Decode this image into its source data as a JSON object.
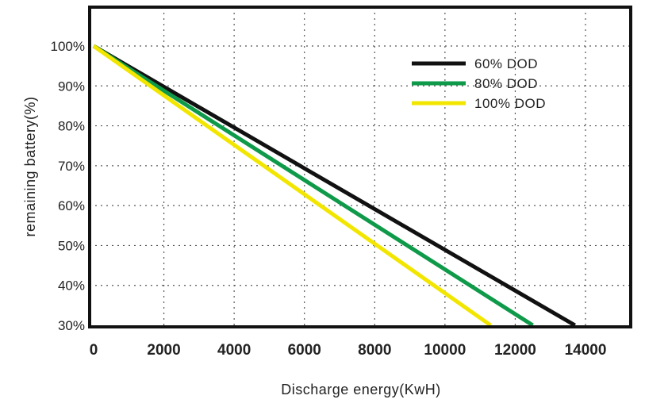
{
  "chart_data": {
    "type": "line",
    "xlabel": "Discharge energy(KwH)",
    "ylabel": "remaining battery(%)",
    "xlim": [
      0,
      14000
    ],
    "ylim": [
      30,
      100
    ],
    "x_ticks": [
      "0",
      "2000",
      "4000",
      "6000",
      "8000",
      "10000",
      "12000",
      "14000"
    ],
    "y_ticks": [
      "30%",
      "40%",
      "50%",
      "60%",
      "70%",
      "80%",
      "90%",
      "100%"
    ],
    "grid": true,
    "legend_position": "top-right",
    "series": [
      {
        "name": "60% DOD",
        "color": "#111111",
        "x": [
          0,
          13700
        ],
        "y": [
          100,
          30
        ]
      },
      {
        "name": "80% DOD",
        "color": "#0f9a4a",
        "x": [
          0,
          12500
        ],
        "y": [
          100,
          30
        ]
      },
      {
        "name": "100% DOD",
        "color": "#f2e600",
        "x": [
          0,
          11300
        ],
        "y": [
          100,
          30
        ]
      }
    ]
  }
}
